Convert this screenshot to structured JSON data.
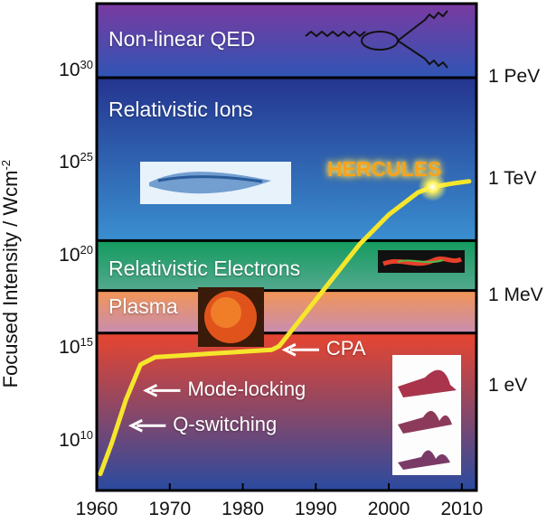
{
  "chart_data": {
    "type": "line",
    "ylabel": "Focused Intensity / Wcm",
    "ylabel_exp": "-2",
    "x_ticks": [
      "1960",
      "1970",
      "1980",
      "1990",
      "2000",
      "2010"
    ],
    "xlim": [
      1960,
      2012
    ],
    "y_scale": "log",
    "ylim_log10": [
      7.7,
      34.0
    ],
    "y_ticks": [
      {
        "base": "10",
        "exp": "10"
      },
      {
        "base": "10",
        "exp": "15"
      },
      {
        "base": "10",
        "exp": "20"
      },
      {
        "base": "10",
        "exp": "25"
      },
      {
        "base": "10",
        "exp": "30"
      }
    ],
    "y_ticks_log10": [
      10,
      15,
      20,
      25,
      30
    ],
    "energy_labels": [
      {
        "text": "1 PeV",
        "log10": 30
      },
      {
        "text": "1 TeV",
        "log10": 24.5
      },
      {
        "text": "1 MeV",
        "log10": 18.2
      },
      {
        "text": "1 eV",
        "log10": 13.3
      }
    ],
    "regions": [
      {
        "label": "Non-linear QED",
        "from": 30.0,
        "to": 34.0,
        "top_color": "#7a3aa0",
        "bottom_color": "#2f55b5"
      },
      {
        "label": "Relativistic Ions",
        "from": 21.2,
        "to": 30.0,
        "top_color": "#24348f",
        "bottom_color": "#3a8fd0"
      },
      {
        "label": "Relativistic Electrons",
        "from": 18.5,
        "to": 21.2,
        "top_color": "#139a5e",
        "bottom_color": "#54a98f"
      },
      {
        "label": "Plasma",
        "from": 16.2,
        "to": 18.5,
        "top_color": "#f29555",
        "bottom_color": "#c88db0"
      },
      {
        "label": "",
        "from": 7.7,
        "to": 16.2,
        "top_color": "#e8452f",
        "bottom_color": "#2a4aa0"
      }
    ],
    "series": [
      {
        "color": "#f5e62c",
        "x": [
          1960.5,
          1962,
          1964,
          1966,
          1968,
          1972,
          1976,
          1980,
          1984,
          1985,
          1988,
          1992,
          1996,
          2000,
          2004,
          2006,
          2009,
          2011
        ],
        "y": [
          8.6,
          10.2,
          12.6,
          14.5,
          14.9,
          15.0,
          15.1,
          15.2,
          15.3,
          15.5,
          17.0,
          19.0,
          21.0,
          22.6,
          23.8,
          24.1,
          24.3,
          24.4
        ]
      }
    ],
    "highlight": {
      "label": "HERCULES",
      "x": 2006,
      "y": 24.1
    },
    "annotations": [
      {
        "text": "CPA",
        "x": 1985,
        "y": 15.3
      },
      {
        "text": "Mode-locking",
        "x": 1966,
        "y": 13.1
      },
      {
        "text": "Q-switching",
        "x": 1964,
        "y": 11.2
      }
    ]
  }
}
